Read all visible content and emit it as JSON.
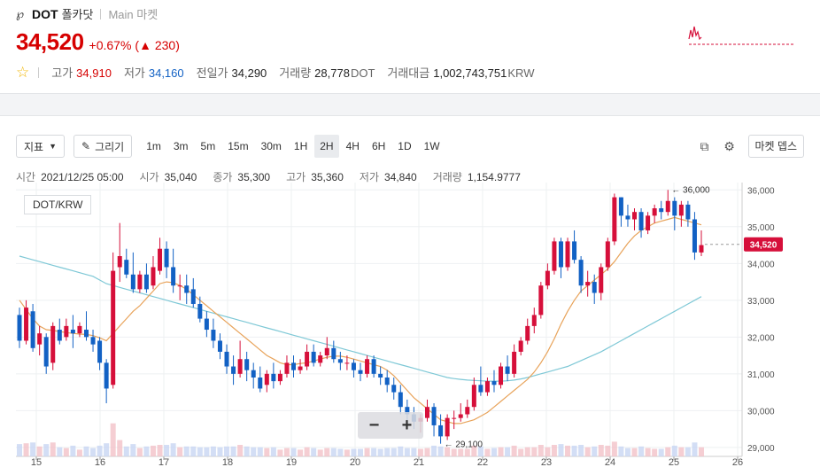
{
  "header": {
    "symbol": "DOT",
    "name": "폴카닷",
    "market": "Main 마켓",
    "price": "34,520",
    "change_rate": "+0.67%",
    "change_amount": "▲ 230",
    "stats": {
      "high_label": "고가",
      "high": "34,910",
      "low_label": "저가",
      "low": "34,160",
      "prev_label": "전일가",
      "prev": "34,290",
      "volume_label": "거래량",
      "volume": "28,778",
      "volume_unit": "DOT",
      "value_label": "거래대금",
      "value": "1,002,743,751",
      "value_unit": "KRW"
    }
  },
  "toolbar": {
    "indicator_label": "지표",
    "draw_label": "그리기",
    "intervals": [
      "1m",
      "3m",
      "5m",
      "15m",
      "30m",
      "1H",
      "2H",
      "4H",
      "6H",
      "1D",
      "1W"
    ],
    "active_interval": "2H",
    "depth_label": "마켓 뎁스"
  },
  "info": {
    "time_label": "시간",
    "time": "2021/12/25 05:00",
    "open_label": "시가",
    "open": "35,040",
    "close_label": "종가",
    "close": "35,300",
    "high_label": "고가",
    "high": "35,360",
    "low_label": "저가",
    "low": "34,840",
    "volume_label": "거래량",
    "volume": "1,154.9777"
  },
  "pair_tag": "DOT/KRW",
  "colors": {
    "up": "#d60f3a",
    "down": "#1261c4",
    "ma_short": "#e8a35a",
    "ma_long": "#7ec8d6"
  },
  "chart_data": {
    "type": "candlestick",
    "pair": "DOT/KRW",
    "x_ticks": [
      "15",
      "16",
      "17",
      "18",
      "19",
      "20",
      "21",
      "22",
      "23",
      "24",
      "25",
      "26"
    ],
    "y_ticks": [
      "29,000",
      "30,000",
      "31,000",
      "32,000",
      "33,000",
      "34,000",
      "35,000",
      "36,000"
    ],
    "ylim": [
      28900,
      36200
    ],
    "grid": true,
    "current_price": 34520,
    "current_price_label": "34,520",
    "max_annotation": {
      "value": 36000,
      "label": "← 36,000"
    },
    "min_annotation": {
      "value": 29100,
      "label": "← 29,100"
    },
    "candles": [
      {
        "o": 32600,
        "h": 32800,
        "c": 31900,
        "l": 31700
      },
      {
        "o": 31900,
        "h": 33000,
        "c": 32800,
        "l": 31800
      },
      {
        "o": 32700,
        "h": 32900,
        "c": 31700,
        "l": 31600
      },
      {
        "o": 31800,
        "h": 32300,
        "c": 32100,
        "l": 31500
      },
      {
        "o": 32000,
        "h": 32100,
        "c": 31200,
        "l": 31000
      },
      {
        "o": 31300,
        "h": 32400,
        "c": 32300,
        "l": 31100
      },
      {
        "o": 32200,
        "h": 32500,
        "c": 31900,
        "l": 31800
      },
      {
        "o": 32000,
        "h": 32500,
        "c": 32300,
        "l": 31900
      },
      {
        "o": 32200,
        "h": 32600,
        "c": 32100,
        "l": 31700
      },
      {
        "o": 32100,
        "h": 32400,
        "c": 32300,
        "l": 32000
      },
      {
        "o": 32200,
        "h": 32700,
        "c": 32000,
        "l": 31900
      },
      {
        "o": 32000,
        "h": 32200,
        "c": 31800,
        "l": 31600
      },
      {
        "o": 31900,
        "h": 32000,
        "c": 31300,
        "l": 31100
      },
      {
        "o": 31300,
        "h": 31400,
        "c": 30600,
        "l": 30200
      },
      {
        "o": 30700,
        "h": 34300,
        "c": 33800,
        "l": 30600
      },
      {
        "o": 33900,
        "h": 35100,
        "c": 34200,
        "l": 33500
      },
      {
        "o": 34100,
        "h": 34400,
        "c": 33700,
        "l": 33600
      },
      {
        "o": 33700,
        "h": 34300,
        "c": 33300,
        "l": 33200
      },
      {
        "o": 33300,
        "h": 33800,
        "c": 33700,
        "l": 33200
      },
      {
        "o": 33700,
        "h": 34000,
        "c": 33300,
        "l": 33200
      },
      {
        "o": 33400,
        "h": 34200,
        "c": 33900,
        "l": 33300
      },
      {
        "o": 33800,
        "h": 34700,
        "c": 34400,
        "l": 33700
      },
      {
        "o": 34400,
        "h": 34600,
        "c": 33900,
        "l": 33600
      },
      {
        "o": 33900,
        "h": 34400,
        "c": 33400,
        "l": 33200
      },
      {
        "o": 33400,
        "h": 33700,
        "c": 33400,
        "l": 33000
      },
      {
        "o": 33400,
        "h": 33700,
        "c": 33200,
        "l": 32900
      },
      {
        "o": 33300,
        "h": 33600,
        "c": 32900,
        "l": 32800
      },
      {
        "o": 32900,
        "h": 33100,
        "c": 32500,
        "l": 32400
      },
      {
        "o": 32500,
        "h": 32700,
        "c": 32200,
        "l": 32000
      },
      {
        "o": 32200,
        "h": 32500,
        "c": 31900,
        "l": 31700
      },
      {
        "o": 31900,
        "h": 32100,
        "c": 31600,
        "l": 31400
      },
      {
        "o": 31600,
        "h": 31800,
        "c": 31200,
        "l": 31000
      },
      {
        "o": 31200,
        "h": 31500,
        "c": 31000,
        "l": 30700
      },
      {
        "o": 31000,
        "h": 31900,
        "c": 31400,
        "l": 30900
      },
      {
        "o": 31400,
        "h": 31600,
        "c": 31100,
        "l": 30800
      },
      {
        "o": 31100,
        "h": 31300,
        "c": 30900,
        "l": 30600
      },
      {
        "o": 30900,
        "h": 31200,
        "c": 30600,
        "l": 30500
      },
      {
        "o": 30700,
        "h": 31100,
        "c": 31000,
        "l": 30500
      },
      {
        "o": 31000,
        "h": 31300,
        "c": 30800,
        "l": 30600
      },
      {
        "o": 30800,
        "h": 31100,
        "c": 31000,
        "l": 30700
      },
      {
        "o": 31000,
        "h": 31500,
        "c": 31300,
        "l": 30900
      },
      {
        "o": 31300,
        "h": 31500,
        "c": 31100,
        "l": 30900
      },
      {
        "o": 31100,
        "h": 31400,
        "c": 31200,
        "l": 31000
      },
      {
        "o": 31200,
        "h": 31800,
        "c": 31600,
        "l": 31100
      },
      {
        "o": 31600,
        "h": 31800,
        "c": 31300,
        "l": 31200
      },
      {
        "o": 31300,
        "h": 31600,
        "c": 31500,
        "l": 31200
      },
      {
        "o": 31500,
        "h": 32000,
        "c": 31700,
        "l": 31400
      },
      {
        "o": 31700,
        "h": 31900,
        "c": 31400,
        "l": 31300
      },
      {
        "o": 31400,
        "h": 31600,
        "c": 31300,
        "l": 31100
      },
      {
        "o": 31300,
        "h": 31500,
        "c": 31300,
        "l": 31100
      },
      {
        "o": 31300,
        "h": 31400,
        "c": 31100,
        "l": 30900
      },
      {
        "o": 31100,
        "h": 31300,
        "c": 31000,
        "l": 30800
      },
      {
        "o": 31000,
        "h": 31500,
        "c": 31400,
        "l": 30900
      },
      {
        "o": 31400,
        "h": 31500,
        "c": 31000,
        "l": 30900
      },
      {
        "o": 31000,
        "h": 31200,
        "c": 30900,
        "l": 30700
      },
      {
        "o": 30900,
        "h": 31100,
        "c": 30700,
        "l": 30500
      },
      {
        "o": 30700,
        "h": 30900,
        "c": 30500,
        "l": 30300
      },
      {
        "o": 30500,
        "h": 30700,
        "c": 30100,
        "l": 29900
      },
      {
        "o": 30100,
        "h": 30300,
        "c": 29900,
        "l": 29700
      },
      {
        "o": 29900,
        "h": 30100,
        "c": 29700,
        "l": 29500
      },
      {
        "o": 29700,
        "h": 29900,
        "c": 29800,
        "l": 29400
      },
      {
        "o": 29800,
        "h": 30300,
        "c": 30100,
        "l": 29700
      },
      {
        "o": 30100,
        "h": 30200,
        "c": 29600,
        "l": 29300
      },
      {
        "o": 29600,
        "h": 29900,
        "c": 29300,
        "l": 29100
      },
      {
        "o": 29300,
        "h": 29900,
        "c": 29800,
        "l": 29200
      },
      {
        "o": 29800,
        "h": 30000,
        "c": 29800,
        "l": 29500
      },
      {
        "o": 29800,
        "h": 30200,
        "c": 29900,
        "l": 29700
      },
      {
        "o": 29900,
        "h": 30300,
        "c": 30100,
        "l": 29800
      },
      {
        "o": 30100,
        "h": 30900,
        "c": 30700,
        "l": 30000
      },
      {
        "o": 30700,
        "h": 31200,
        "c": 30500,
        "l": 30400
      },
      {
        "o": 30500,
        "h": 30900,
        "c": 30800,
        "l": 30400
      },
      {
        "o": 30800,
        "h": 31100,
        "c": 30700,
        "l": 30500
      },
      {
        "o": 30700,
        "h": 31300,
        "c": 31200,
        "l": 30600
      },
      {
        "o": 31200,
        "h": 31500,
        "c": 31000,
        "l": 30800
      },
      {
        "o": 31000,
        "h": 31800,
        "c": 31600,
        "l": 30900
      },
      {
        "o": 31600,
        "h": 32000,
        "c": 31900,
        "l": 31500
      },
      {
        "o": 31900,
        "h": 32500,
        "c": 32300,
        "l": 31800
      },
      {
        "o": 32300,
        "h": 32800,
        "c": 32600,
        "l": 32100
      },
      {
        "o": 32600,
        "h": 33500,
        "c": 33400,
        "l": 32500
      },
      {
        "o": 33400,
        "h": 34000,
        "c": 33800,
        "l": 33300
      },
      {
        "o": 33800,
        "h": 34700,
        "c": 34600,
        "l": 33700
      },
      {
        "o": 34600,
        "h": 34700,
        "c": 33900,
        "l": 33600
      },
      {
        "o": 33900,
        "h": 34700,
        "c": 34600,
        "l": 33800
      },
      {
        "o": 34600,
        "h": 34900,
        "c": 34100,
        "l": 34000
      },
      {
        "o": 34100,
        "h": 34200,
        "c": 33400,
        "l": 33200
      },
      {
        "o": 33400,
        "h": 33800,
        "c": 33500,
        "l": 33100
      },
      {
        "o": 33500,
        "h": 33700,
        "c": 33200,
        "l": 32900
      },
      {
        "o": 33200,
        "h": 34000,
        "c": 33900,
        "l": 33000
      },
      {
        "o": 33900,
        "h": 34700,
        "c": 34600,
        "l": 33800
      },
      {
        "o": 34600,
        "h": 35900,
        "c": 35800,
        "l": 34500
      },
      {
        "o": 35800,
        "h": 35800,
        "c": 35300,
        "l": 35000
      },
      {
        "o": 35300,
        "h": 35600,
        "c": 35200,
        "l": 35000
      },
      {
        "o": 35200,
        "h": 35500,
        "c": 35400,
        "l": 34900
      },
      {
        "o": 35400,
        "h": 35500,
        "c": 34900,
        "l": 34700
      },
      {
        "o": 34900,
        "h": 35400,
        "c": 35300,
        "l": 34800
      },
      {
        "o": 35300,
        "h": 35600,
        "c": 35500,
        "l": 35100
      },
      {
        "o": 35500,
        "h": 35700,
        "c": 35400,
        "l": 35200
      },
      {
        "o": 35400,
        "h": 36000,
        "c": 35700,
        "l": 35300
      },
      {
        "o": 35700,
        "h": 35800,
        "c": 35300,
        "l": 34900
      },
      {
        "o": 35300,
        "h": 35700,
        "c": 35600,
        "l": 35000
      },
      {
        "o": 35600,
        "h": 35700,
        "c": 35200,
        "l": 35000
      },
      {
        "o": 35200,
        "h": 35400,
        "c": 34300,
        "l": 34100
      },
      {
        "o": 34300,
        "h": 34900,
        "c": 34500,
        "l": 34200
      }
    ],
    "ma_short": [
      33000,
      32750,
      32500,
      32300,
      32200,
      32180,
      32150,
      32120,
      32100,
      32080,
      32070,
      32040,
      31980,
      31900,
      32100,
      32300,
      32500,
      32700,
      32850,
      33050,
      33250,
      33450,
      33500,
      33480,
      33400,
      33300,
      33150,
      33000,
      32850,
      32700,
      32550,
      32400,
      32250,
      32100,
      31950,
      31800,
      31650,
      31500,
      31400,
      31300,
      31250,
      31250,
      31280,
      31300,
      31350,
      31400,
      31450,
      31480,
      31480,
      31450,
      31400,
      31350,
      31300,
      31250,
      31200,
      31100,
      30950,
      30750,
      30550,
      30350,
      30200,
      30050,
      29900,
      29750,
      29700,
      29650,
      29650,
      29700,
      29750,
      29850,
      29950,
      30100,
      30250,
      30400,
      30550,
      30700,
      30850,
      31050,
      31300,
      31600,
      31950,
      32350,
      32700,
      33000,
      33250,
      33400,
      33550,
      33700,
      33850,
      34050,
      34300,
      34550,
      34750,
      34900,
      35000,
      35100,
      35150,
      35200,
      35250,
      35200,
      35150,
      35100,
      35050
    ],
    "ma_long": [
      34200,
      34150,
      34100,
      34050,
      34000,
      33950,
      33900,
      33850,
      33800,
      33750,
      33700,
      33650,
      33550,
      33450,
      33400,
      33350,
      33300,
      33250,
      33200,
      33150,
      33100,
      33050,
      33000,
      32950,
      32900,
      32850,
      32800,
      32750,
      32700,
      32650,
      32600,
      32550,
      32500,
      32450,
      32400,
      32350,
      32300,
      32250,
      32200,
      32150,
      32100,
      32050,
      32000,
      31950,
      31900,
      31850,
      31800,
      31750,
      31700,
      31650,
      31600,
      31550,
      31500,
      31450,
      31400,
      31350,
      31300,
      31250,
      31200,
      31150,
      31100,
      31050,
      31000,
      30950,
      30900,
      30870,
      30850,
      30830,
      30820,
      30810,
      30800,
      30800,
      30800,
      30810,
      30830,
      30860,
      30900,
      30950,
      31000,
      31050,
      31100,
      31150,
      31200,
      31280,
      31360,
      31440,
      31520,
      31600,
      31700,
      31800,
      31900,
      32000,
      32100,
      32200,
      32300,
      32400,
      32500,
      32600,
      32700,
      32800,
      32900,
      33000,
      33100
    ]
  }
}
